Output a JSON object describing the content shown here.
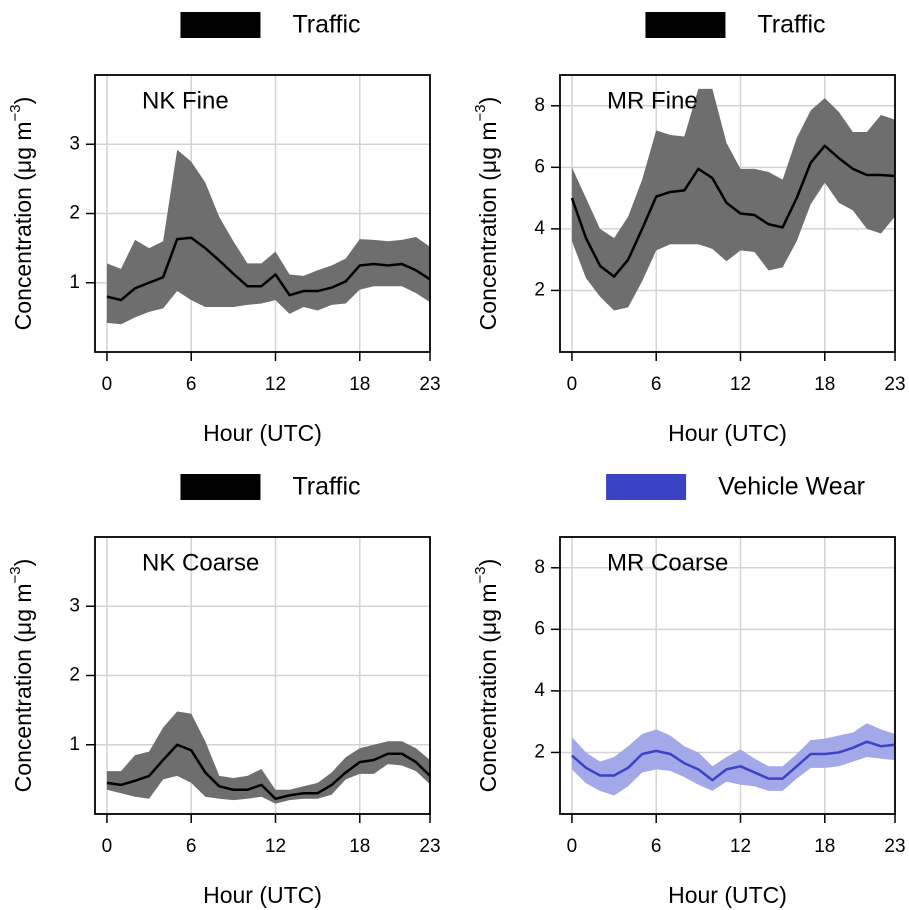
{
  "chart_data": [
    {
      "type": "line",
      "panel_label": "NK Fine",
      "xlabel": "Hour (UTC)",
      "ylabel": "Concentration (μg m",
      "ylabel_superscript": "−3",
      "x": [
        0,
        1,
        2,
        3,
        4,
        5,
        6,
        7,
        8,
        9,
        10,
        11,
        12,
        13,
        14,
        15,
        16,
        17,
        18,
        19,
        20,
        21,
        22,
        23
      ],
      "xlim": [
        -0.85,
        23
      ],
      "xticks": [
        0,
        6,
        12,
        18,
        23
      ],
      "ylim": [
        0,
        4
      ],
      "yticks": [
        1,
        2,
        3
      ],
      "grid": true,
      "series": [
        {
          "name": "Traffic",
          "color": "#000000",
          "band_color": "#6e6e6e",
          "values": [
            0.8,
            0.75,
            0.92,
            1.0,
            1.08,
            1.63,
            1.65,
            1.5,
            1.32,
            1.13,
            0.95,
            0.95,
            1.12,
            0.82,
            0.88,
            0.88,
            0.93,
            1.02,
            1.25,
            1.27,
            1.25,
            1.27,
            1.18,
            1.05
          ],
          "upper": [
            1.28,
            1.2,
            1.62,
            1.5,
            1.6,
            2.92,
            2.75,
            2.45,
            1.95,
            1.6,
            1.28,
            1.28,
            1.45,
            1.12,
            1.1,
            1.18,
            1.25,
            1.35,
            1.63,
            1.62,
            1.6,
            1.62,
            1.66,
            1.52
          ],
          "lower": [
            0.42,
            0.4,
            0.5,
            0.58,
            0.63,
            0.88,
            0.75,
            0.65,
            0.65,
            0.65,
            0.68,
            0.7,
            0.75,
            0.55,
            0.65,
            0.6,
            0.68,
            0.7,
            0.9,
            0.95,
            0.95,
            0.95,
            0.85,
            0.72
          ]
        }
      ]
    },
    {
      "type": "line",
      "panel_label": "MR Fine",
      "xlabel": "Hour (UTC)",
      "ylabel": "Concentration (μg m",
      "ylabel_superscript": "−3",
      "x": [
        0,
        1,
        2,
        3,
        4,
        5,
        6,
        7,
        8,
        9,
        10,
        11,
        12,
        13,
        14,
        15,
        16,
        17,
        18,
        19,
        20,
        21,
        22,
        23
      ],
      "xlim": [
        -0.85,
        23
      ],
      "xticks": [
        0,
        6,
        12,
        18,
        23
      ],
      "ylim": [
        0,
        9
      ],
      "yticks": [
        2,
        4,
        6,
        8
      ],
      "grid": true,
      "series": [
        {
          "name": "Traffic",
          "color": "#000000",
          "band_color": "#6e6e6e",
          "values": [
            5.0,
            3.7,
            2.8,
            2.45,
            3.0,
            4.0,
            5.05,
            5.2,
            5.25,
            5.95,
            5.65,
            4.85,
            4.5,
            4.45,
            4.15,
            4.05,
            5.0,
            6.15,
            6.7,
            6.3,
            5.95,
            5.75,
            5.75,
            5.72
          ],
          "upper": [
            6.0,
            5.0,
            4.0,
            3.7,
            4.4,
            5.6,
            7.2,
            7.05,
            7.0,
            8.55,
            8.55,
            6.8,
            5.95,
            5.95,
            5.85,
            5.6,
            6.95,
            7.85,
            8.25,
            7.8,
            7.15,
            7.15,
            7.7,
            7.55
          ],
          "lower": [
            3.6,
            2.4,
            1.8,
            1.35,
            1.45,
            2.3,
            3.3,
            3.5,
            3.5,
            3.5,
            3.35,
            2.95,
            3.3,
            3.25,
            2.65,
            2.75,
            3.6,
            4.8,
            5.5,
            4.85,
            4.6,
            4.0,
            3.85,
            4.4
          ]
        }
      ]
    },
    {
      "type": "line",
      "panel_label": "NK Coarse",
      "xlabel": "Hour (UTC)",
      "ylabel": "Concentration (μg m",
      "ylabel_superscript": "−3",
      "x": [
        0,
        1,
        2,
        3,
        4,
        5,
        6,
        7,
        8,
        9,
        10,
        11,
        12,
        13,
        14,
        15,
        16,
        17,
        18,
        19,
        20,
        21,
        22,
        23
      ],
      "xlim": [
        -0.85,
        23
      ],
      "xticks": [
        0,
        6,
        12,
        18,
        23
      ],
      "ylim": [
        0,
        4
      ],
      "yticks": [
        1,
        2,
        3
      ],
      "grid": true,
      "series": [
        {
          "name": "Traffic",
          "color": "#000000",
          "band_color": "#6e6e6e",
          "values": [
            0.45,
            0.42,
            0.48,
            0.55,
            0.78,
            1.0,
            0.92,
            0.6,
            0.4,
            0.35,
            0.35,
            0.42,
            0.22,
            0.27,
            0.3,
            0.3,
            0.42,
            0.6,
            0.75,
            0.78,
            0.87,
            0.87,
            0.75,
            0.55
          ],
          "upper": [
            0.62,
            0.62,
            0.85,
            0.9,
            1.25,
            1.48,
            1.45,
            1.05,
            0.55,
            0.52,
            0.55,
            0.65,
            0.35,
            0.35,
            0.4,
            0.45,
            0.6,
            0.82,
            0.95,
            1.0,
            1.05,
            1.05,
            0.95,
            0.78
          ],
          "lower": [
            0.35,
            0.3,
            0.25,
            0.22,
            0.5,
            0.55,
            0.45,
            0.25,
            0.22,
            0.2,
            0.22,
            0.25,
            0.15,
            0.2,
            0.22,
            0.22,
            0.28,
            0.5,
            0.58,
            0.58,
            0.72,
            0.7,
            0.62,
            0.43
          ]
        }
      ]
    },
    {
      "type": "line",
      "panel_label": "MR Coarse",
      "xlabel": "Hour (UTC)",
      "ylabel": "Concentration (μg m",
      "ylabel_superscript": "−3",
      "x": [
        0,
        1,
        2,
        3,
        4,
        5,
        6,
        7,
        8,
        9,
        10,
        11,
        12,
        13,
        14,
        15,
        16,
        17,
        18,
        19,
        20,
        21,
        22,
        23
      ],
      "xlim": [
        -0.85,
        23
      ],
      "xticks": [
        0,
        6,
        12,
        18,
        23
      ],
      "ylim": [
        0,
        9
      ],
      "yticks": [
        2,
        4,
        6,
        8
      ],
      "grid": true,
      "series": [
        {
          "name": "Vehicle Wear",
          "color": "#3a43c3",
          "band_color": "#a3a8e8",
          "values": [
            1.9,
            1.5,
            1.25,
            1.25,
            1.5,
            1.95,
            2.05,
            1.95,
            1.65,
            1.45,
            1.1,
            1.45,
            1.55,
            1.35,
            1.15,
            1.15,
            1.55,
            1.95,
            1.95,
            2.0,
            2.15,
            2.35,
            2.2,
            2.25
          ],
          "upper": [
            2.5,
            2.0,
            1.7,
            1.85,
            2.2,
            2.6,
            2.75,
            2.55,
            2.2,
            2.0,
            1.55,
            1.85,
            2.1,
            1.8,
            1.55,
            1.55,
            1.95,
            2.4,
            2.45,
            2.55,
            2.65,
            2.95,
            2.75,
            2.6
          ],
          "lower": [
            1.45,
            1.0,
            0.75,
            0.6,
            0.9,
            1.35,
            1.45,
            1.4,
            1.2,
            0.95,
            0.75,
            1.05,
            0.95,
            0.9,
            0.75,
            0.75,
            1.15,
            1.5,
            1.5,
            1.55,
            1.7,
            1.85,
            1.8,
            1.75
          ]
        }
      ]
    }
  ]
}
